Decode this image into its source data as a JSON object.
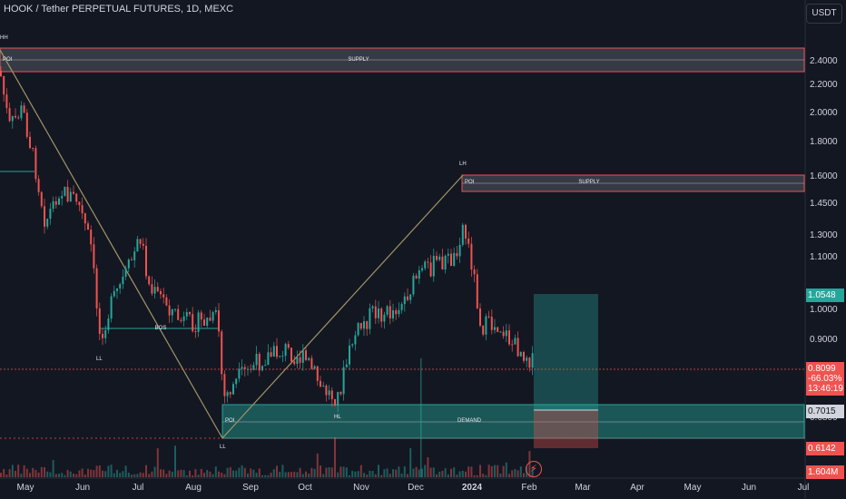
{
  "header": {
    "title": "HOOK / Tether PERPETUAL FUTURES, 1D, MEXC",
    "currency_button": "USDT"
  },
  "colors": {
    "background": "#131722",
    "up": "#26a69a",
    "down": "#ef5350",
    "supply_zone": "#787b86",
    "demand_zone": "#26a69a",
    "trendline": "#a09468"
  },
  "price_axis": {
    "ticks": [
      "2.4000",
      "2.2000",
      "2.0000",
      "1.8000",
      "1.6000",
      "1.4500",
      "1.3000",
      "1.1000",
      "1.0000",
      "0.9000",
      "0.6800"
    ]
  },
  "time_axis": {
    "labels": [
      {
        "text": "May",
        "bold": false
      },
      {
        "text": "Jun",
        "bold": false
      },
      {
        "text": "Jul",
        "bold": false
      },
      {
        "text": "Aug",
        "bold": false
      },
      {
        "text": "Sep",
        "bold": false
      },
      {
        "text": "Oct",
        "bold": false
      },
      {
        "text": "Nov",
        "bold": false
      },
      {
        "text": "Dec",
        "bold": false
      },
      {
        "text": "2024",
        "bold": true
      },
      {
        "text": "Feb",
        "bold": false
      },
      {
        "text": "Mar",
        "bold": false
      },
      {
        "text": "Apr",
        "bold": false
      },
      {
        "text": "May",
        "bold": false
      },
      {
        "text": "Jun",
        "bold": false
      },
      {
        "text": "Jul",
        "bold": false
      }
    ]
  },
  "price_labels": {
    "target": "1.0548",
    "last_price": "0.8099",
    "last_change": "-66.03%",
    "countdown": "13:46:19",
    "entry": "0.7015",
    "stop": "0.6142",
    "volume": "1.604M"
  },
  "annotations": {
    "poi": "POI",
    "supply": "SUPPLY",
    "demand": "DEMAND",
    "bos": "BOS",
    "ll": "LL",
    "lh": "LH",
    "hl": "HL",
    "hh": "HH"
  },
  "icons": {
    "replay": "lightning-icon"
  }
}
